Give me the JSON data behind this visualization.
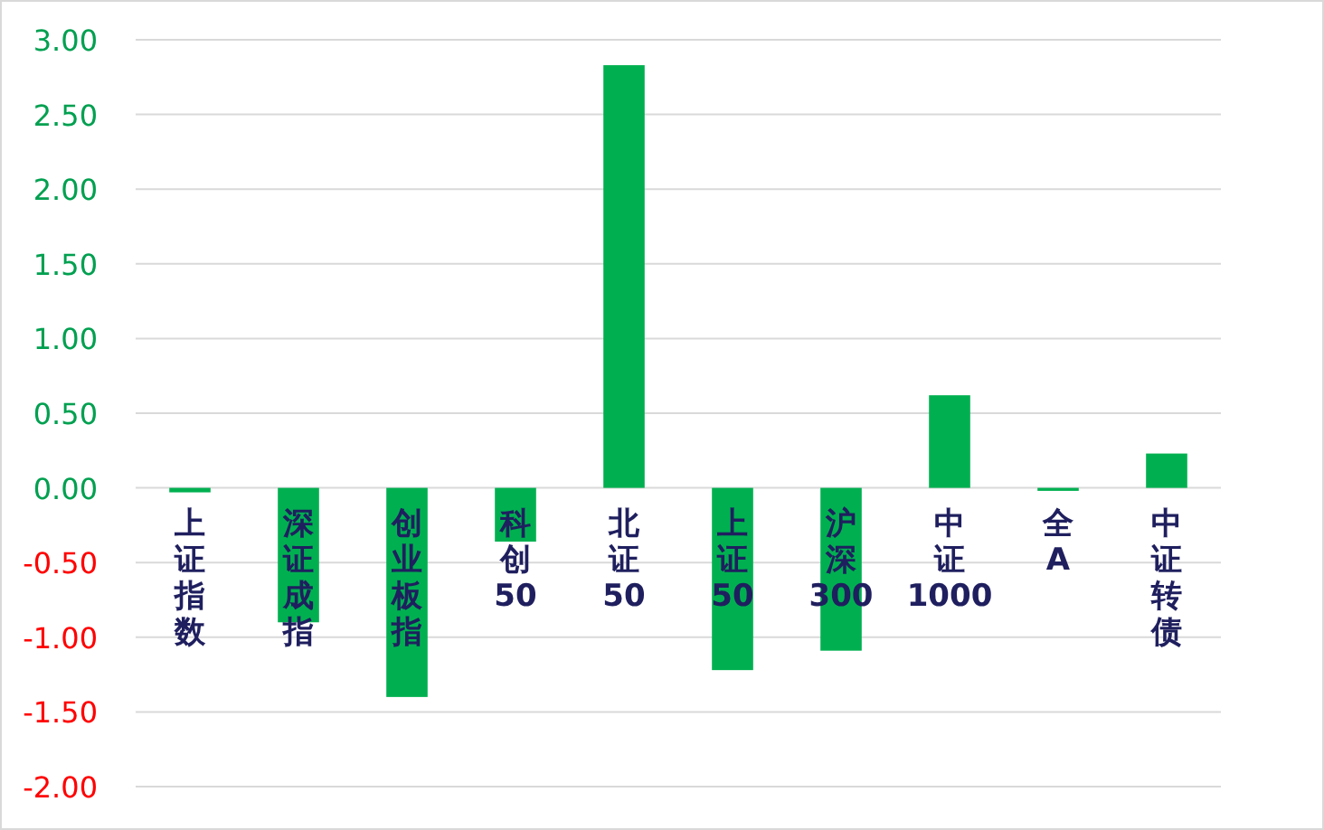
{
  "chart_data": {
    "type": "bar",
    "categories": [
      "上证指数",
      "深证成指",
      "创业板指",
      "科创50",
      "北证50",
      "上证50",
      "沪深300",
      "中证1000",
      "全A",
      "中证转债"
    ],
    "values": [
      -0.03,
      -0.9,
      -1.4,
      -0.36,
      2.83,
      -1.22,
      -1.09,
      0.62,
      -0.02,
      0.23
    ],
    "color": "#00b050",
    "ylim": [
      -2,
      3
    ],
    "yticks": [
      {
        "value": 3,
        "label": "3.00"
      },
      {
        "value": 2.5,
        "label": "2.50"
      },
      {
        "value": 2,
        "label": "2.00"
      },
      {
        "value": 1.5,
        "label": "1.50"
      },
      {
        "value": 1,
        "label": "1.00"
      },
      {
        "value": 0.5,
        "label": "0.50"
      },
      {
        "value": 0,
        "label": "0.00"
      },
      {
        "value": -0.5,
        "label": "-0.50"
      },
      {
        "value": -1,
        "label": "-1.00"
      },
      {
        "value": -1.5,
        "label": "-1.50"
      },
      {
        "value": -2,
        "label": "-2.00"
      }
    ],
    "grid": "y"
  }
}
